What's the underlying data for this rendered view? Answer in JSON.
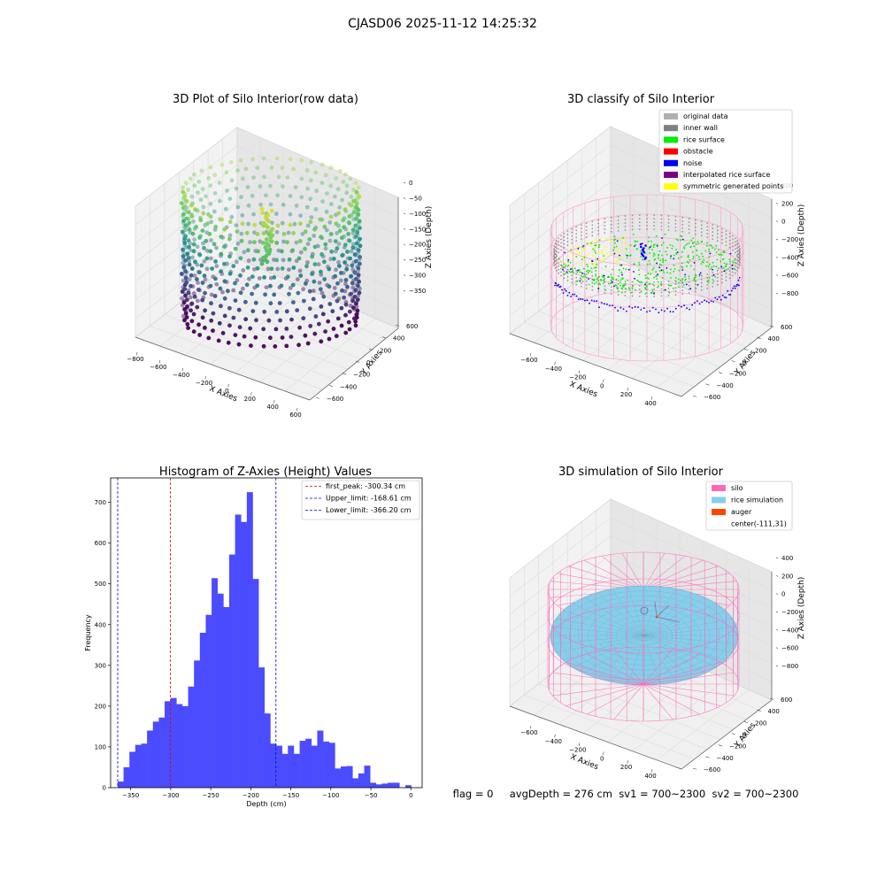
{
  "figure": {
    "suptitle": "CJASD06 2025-11-12 14:25:32"
  },
  "panel_raw": {
    "title": "3D Plot of Silo Interior(row data)",
    "xlabel": "X Axies",
    "ylabel": "Y Axies",
    "zlabel": "Z Axies (Depth)",
    "x_ticks": [
      "−800",
      "−600",
      "−400",
      "−200",
      "0",
      "200",
      "400",
      "600"
    ],
    "y_ticks": [
      "−600",
      "−400",
      "−200",
      "0",
      "200",
      "400",
      "600"
    ],
    "z_ticks": [
      "0",
      "−50",
      "−100",
      "−150",
      "−200",
      "−250",
      "−300",
      "−350"
    ]
  },
  "panel_classify": {
    "title": "3D classify of Silo Interior",
    "xlabel": "X Axies",
    "ylabel": "Y Axies",
    "zlabel": "Z Axies (Depth)",
    "x_ticks": [
      "−600",
      "−400",
      "−200",
      "0",
      "200",
      "400"
    ],
    "y_ticks": [
      "−600",
      "−400",
      "−200",
      "0",
      "200",
      "400",
      "600"
    ],
    "z_ticks": [
      "400",
      "200",
      "0",
      "−200",
      "−400",
      "−600",
      "−800"
    ],
    "legend": [
      {
        "label": "original data",
        "color": "#b0b0b0"
      },
      {
        "label": "inner wall",
        "color": "#808080"
      },
      {
        "label": "rice surface",
        "color": "#00ee00"
      },
      {
        "label": "obstacle",
        "color": "#ff0000"
      },
      {
        "label": "noise",
        "color": "#0000ee"
      },
      {
        "label": "interpolated rice surface",
        "color": "#800080"
      },
      {
        "label": "symmetric generated points",
        "color": "#ffff00"
      }
    ]
  },
  "panel_sim": {
    "title": "3D simulation of Silo Interior",
    "xlabel": "X Axies",
    "ylabel": "Y Axies",
    "zlabel": "Z Axies (Depth)",
    "x_ticks": [
      "−600",
      "−400",
      "−200",
      "0",
      "200",
      "400"
    ],
    "y_ticks": [
      "−600",
      "−400",
      "−200",
      "0",
      "200",
      "400",
      "600"
    ],
    "z_ticks": [
      "400",
      "200",
      "0",
      "−200",
      "−400",
      "−600",
      "−800"
    ],
    "legend": [
      {
        "label": "silo",
        "color": "#ff69b4"
      },
      {
        "label": "rice simulation",
        "color": "#87ceeb"
      },
      {
        "label": "auger",
        "color": "#ff4500"
      },
      {
        "label": "center(-111,31)",
        "color": ""
      }
    ],
    "footer": "flag = 0     avgDepth = 276 cm  sv1 = 700~2300  sv2 = 700~2300"
  },
  "chart_data": [
    {
      "type": "histogram",
      "title": "Histogram of Z-Axies (Height) Values",
      "xlabel": "Depth (cm)",
      "ylabel": "Frequency",
      "xlim": [
        -375,
        14
      ],
      "ylim": [
        0,
        760
      ],
      "x_ticks": [
        -350,
        -300,
        -250,
        -200,
        -150,
        -100,
        -50,
        0
      ],
      "y_ticks": [
        0,
        100,
        200,
        300,
        400,
        500,
        600,
        700
      ],
      "bin_start": -366.2,
      "bin_width": 7.33,
      "bar_color": "#4b4bff",
      "counts": [
        15,
        50,
        88,
        105,
        108,
        140,
        162,
        172,
        212,
        220,
        205,
        200,
        248,
        312,
        380,
        424,
        514,
        476,
        443,
        572,
        670,
        652,
        725,
        512,
        295,
        182,
        108,
        103,
        83,
        103,
        83,
        115,
        120,
        103,
        140,
        113,
        110,
        47,
        52,
        53,
        23,
        35,
        54,
        12,
        8,
        10,
        12,
        12,
        0,
        6
      ],
      "lines": [
        {
          "label": "first_peak: -300.34 cm",
          "x": -300.34,
          "color": "#e00000"
        },
        {
          "label": "Upper_limit: -168.61 cm",
          "x": -168.61,
          "color": "#0000dd"
        },
        {
          "label": "Lower_limit: -366.20 cm",
          "x": -366.2,
          "color": "#0000dd"
        }
      ]
    }
  ]
}
